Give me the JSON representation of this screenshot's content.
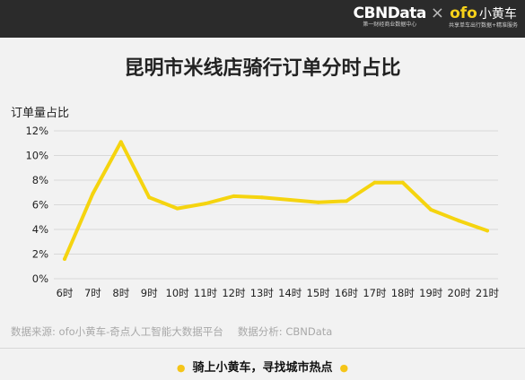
{
  "header": {
    "brand": "CBNData",
    "brand_sub": "第一财经商业数据中心",
    "partner_x": "×",
    "partner_ofo": "ofo",
    "partner_cn": "小黄车",
    "partner_sub": "共享单车出行数据+精准服务"
  },
  "footer": {
    "source": "数据来源: ofo小黄车-奇点人工智能大数据平台",
    "analysis": "数据分析: CBNData",
    "slogan": "骑上小黄车，寻找城市热点",
    "dot": "●"
  },
  "colors": {
    "line": "#f5d40f",
    "axis": "#d8d8d8",
    "bg": "#f2f2f2"
  },
  "chart_data": {
    "type": "line",
    "title": "昆明市米线店骑行订单分时占比",
    "xlabel": "",
    "ylabel": "订单量占比",
    "categories": [
      "6时",
      "7时",
      "8时",
      "9时",
      "10时",
      "11时",
      "12时",
      "13时",
      "14时",
      "15时",
      "16时",
      "17时",
      "18时",
      "19时",
      "20时",
      "21时"
    ],
    "series": [
      {
        "values": [
          1.6,
          6.9,
          11.1,
          6.6,
          5.7,
          6.1,
          6.7,
          6.6,
          6.4,
          6.2,
          6.3,
          7.8,
          7.8,
          5.6,
          4.7,
          3.9
        ]
      }
    ],
    "ylim": [
      0,
      12
    ],
    "yticks": [
      0,
      2,
      4,
      6,
      8,
      10,
      12
    ],
    "ytick_labels": [
      "0%",
      "2%",
      "4%",
      "6%",
      "8%",
      "10%",
      "12%"
    ],
    "grid": true,
    "legend": "none"
  }
}
